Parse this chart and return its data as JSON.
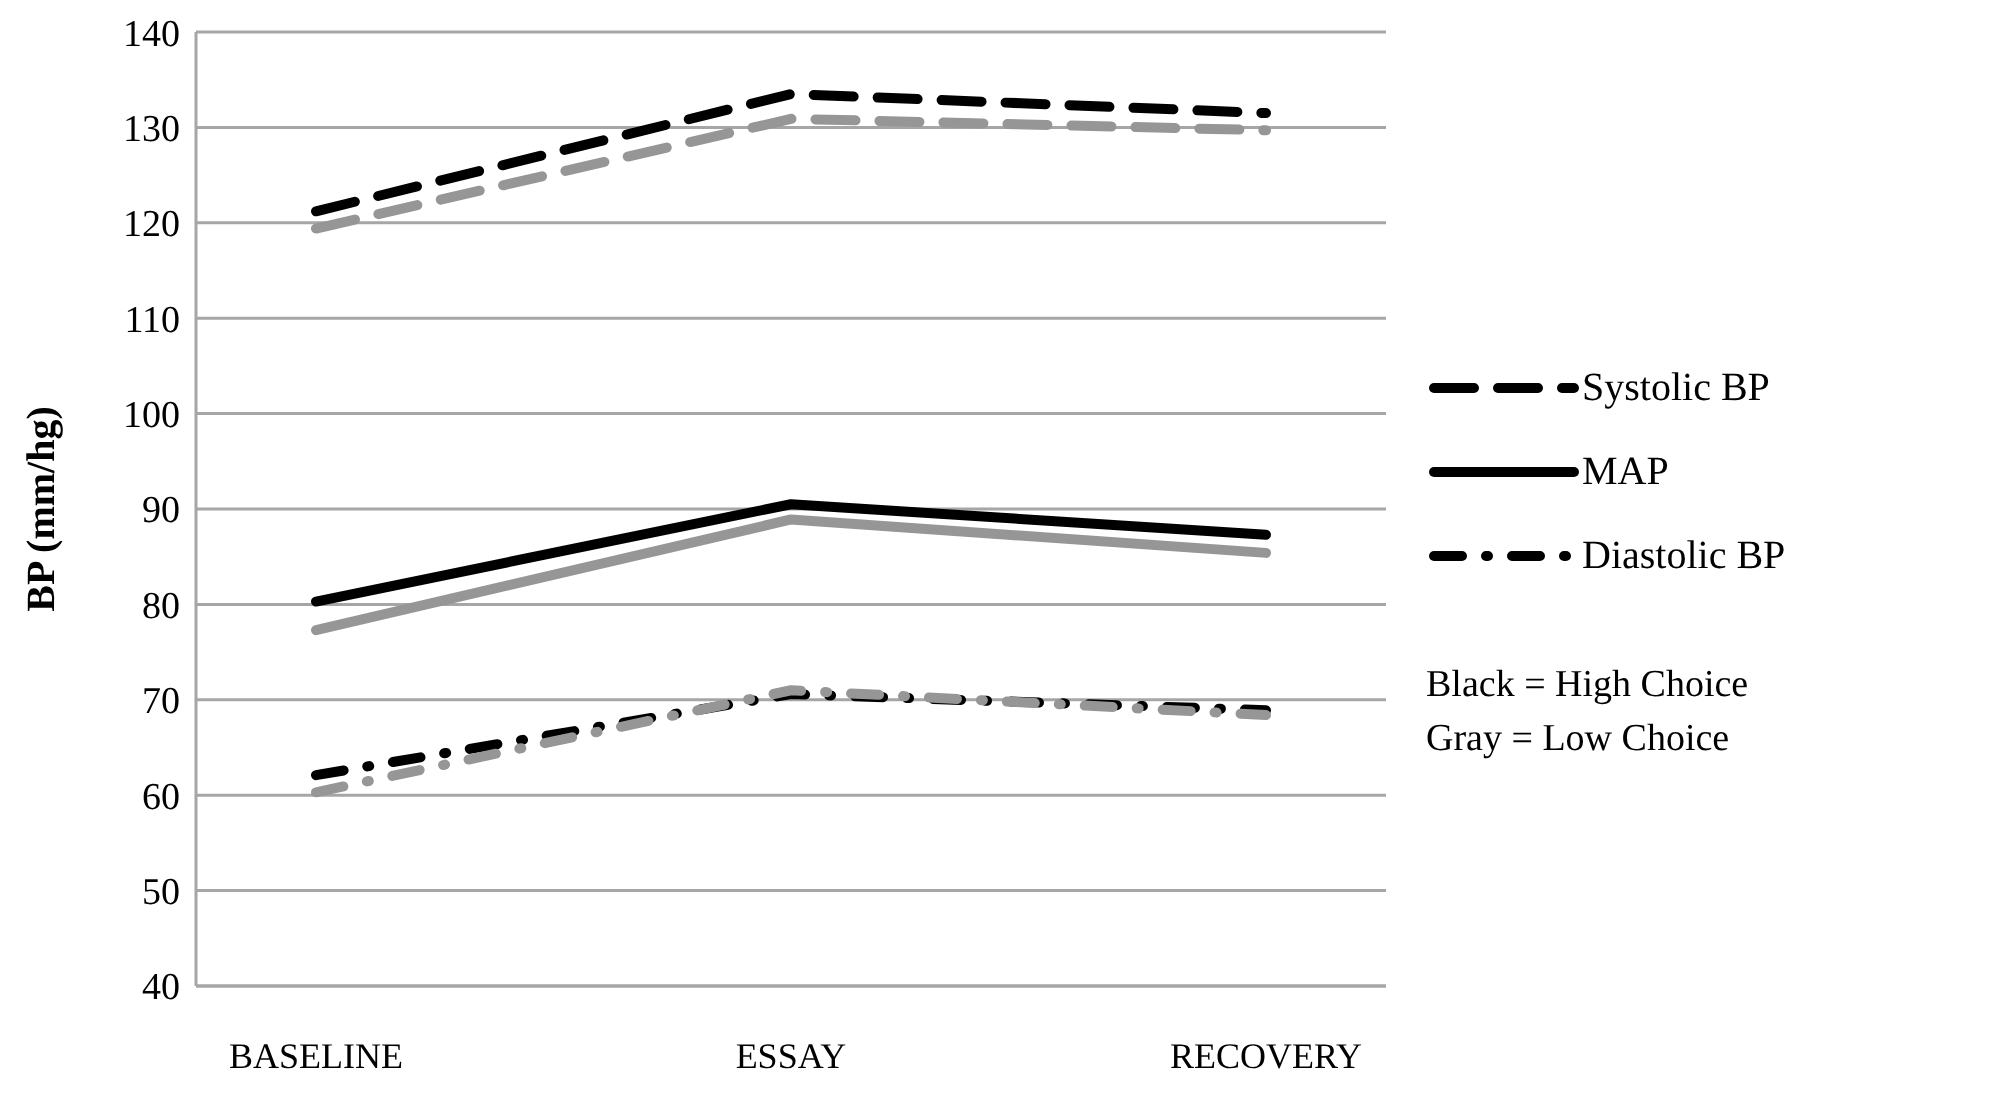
{
  "chart_data": {
    "type": "line",
    "ylabel": "BP (mm/hg)",
    "categories": [
      "BASELINE",
      "ESSAY",
      "RECOVERY"
    ],
    "series": [
      {
        "name": "Systolic BP",
        "color": "#000000",
        "line_style": "dashed",
        "values": [
          121.2,
          133.5,
          131.5
        ]
      },
      {
        "color": "#969696",
        "line_style": "dashed",
        "values": [
          119.4,
          130.9,
          129.7
        ]
      },
      {
        "name": "MAP",
        "color": "#000000",
        "line_style": "solid",
        "values": [
          80.3,
          90.5,
          87.3
        ]
      },
      {
        "color": "#969696",
        "line_style": "solid",
        "values": [
          77.3,
          88.9,
          85.4
        ]
      },
      {
        "name": "Diastolic BP",
        "color": "#000000",
        "line_style": "dashdot",
        "values": [
          62.1,
          70.6,
          68.9
        ]
      },
      {
        "color": "#969696",
        "line_style": "dashdot",
        "values": [
          60.3,
          71.0,
          68.4
        ]
      }
    ],
    "ylim": [
      40,
      140
    ],
    "yticks": [
      40,
      50,
      60,
      70,
      80,
      90,
      100,
      110,
      120,
      130,
      140
    ],
    "grid": "y",
    "legend": "right",
    "marker": "none",
    "annotations": [
      "Black = High Choice",
      "Gray = Low Choice"
    ]
  }
}
